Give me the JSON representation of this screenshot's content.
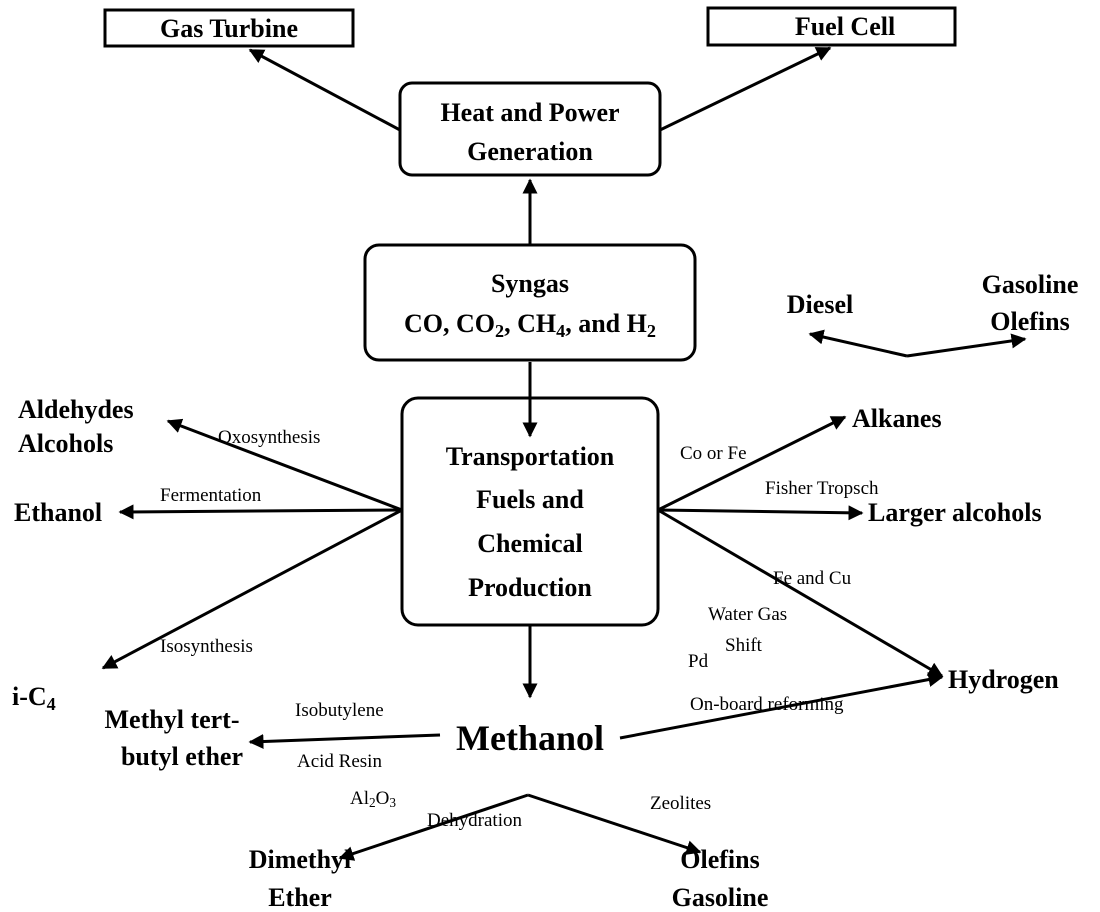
{
  "boxes": {
    "gas_turbine": "Gas Turbine",
    "fuel_cell": "Fuel Cell",
    "heat_power": [
      "Heat and Power",
      "Generation"
    ],
    "syngas": [
      "Syngas",
      [
        "CO, CO",
        "2",
        ", CH",
        "4",
        ", and H",
        "2"
      ]
    ],
    "transport": [
      "Transportation",
      "Fuels and",
      "Chemical",
      "Production"
    ]
  },
  "products": {
    "aldehydes_alcohols": [
      "Aldehydes",
      "Alcohols"
    ],
    "ethanol": "Ethanol",
    "i_c4": [
      "i-C",
      "4"
    ],
    "mtbe": [
      "Methyl tert-",
      "butyl ether"
    ],
    "methanol": "Methanol",
    "dimethyl_ether": [
      "Dimethyl",
      "Ether"
    ],
    "olefins_gasoline": [
      "Olefins",
      "Gasoline"
    ],
    "diesel": "Diesel",
    "gasoline_olefins": [
      "Gasoline",
      "Olefins"
    ],
    "alkanes": "Alkanes",
    "larger_alcohols": "Larger alcohols",
    "hydrogen": "Hydrogen"
  },
  "processes": {
    "oxosynthesis": "Oxosynthesis",
    "fermentation": "Fermentation",
    "isosynthesis": "Isosynthesis",
    "co_or_fe": "Co or Fe",
    "fisher_tropsch": "Fisher Tropsch",
    "fe_and_cu": "Fe and Cu",
    "water_gas_shift": [
      "Water Gas",
      "Shift"
    ],
    "pd": "Pd",
    "on_board_reforming": "On-board reforming",
    "isobutylene": "Isobutylene",
    "acid_resin": "Acid Resin",
    "al2o3": [
      "Al",
      "2",
      "O",
      "3"
    ],
    "dehydration": "Dehydration",
    "zeolites": "Zeolites"
  }
}
